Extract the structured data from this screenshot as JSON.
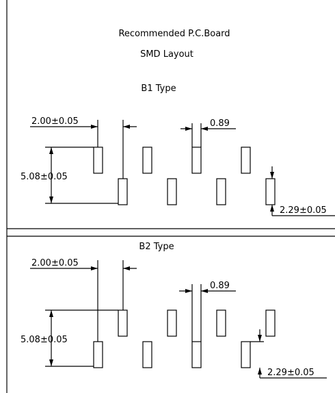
{
  "header": {
    "title_line1": "Recommended P.C.Board",
    "title_line2": "SMD Layout"
  },
  "b1": {
    "type_label": "B1  Type",
    "dim_pitch": "2.00±0.05",
    "dim_width": "0.89",
    "dim_row_spacing": "5.08±0.05",
    "dim_pad_length": "2.29±0.05"
  },
  "b2": {
    "type_label": "B2  Type",
    "dim_pitch": "2.00±0.05",
    "dim_width": "0.89",
    "dim_row_spacing": "5.08±0.05",
    "dim_pad_length": "2.29±0.05"
  }
}
